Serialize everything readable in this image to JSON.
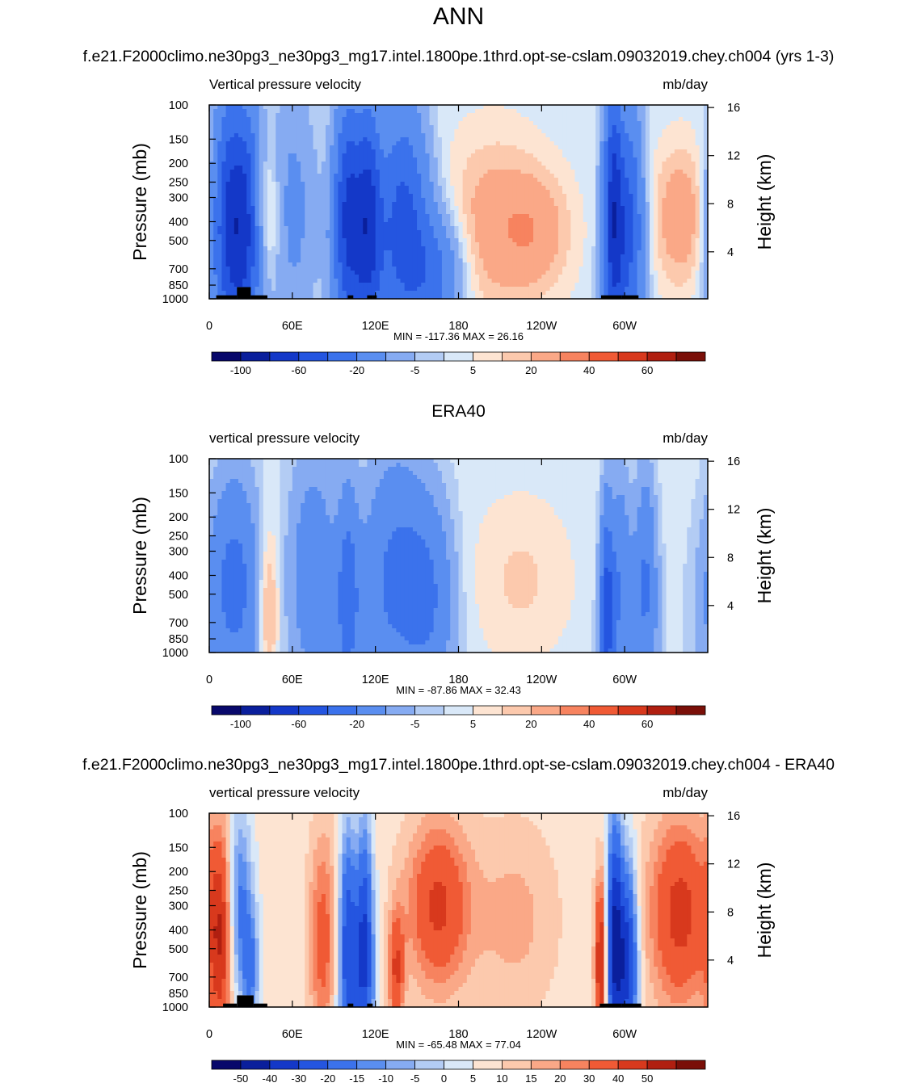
{
  "figure": {
    "title": "ANN"
  },
  "colors": {
    "frame": "#000000",
    "land": "#000000"
  },
  "chart_data": [
    {
      "type": "heatmap",
      "title": "f.e21.F2000climo.ne30pg3_ne30pg3_mg17.intel.1800pe.1thrd.opt-se-cslam.09032019.chey.ch004 (yrs 1-3)",
      "left_label": "Vertical pressure velocity",
      "right_label": "mb/day",
      "ylabel": "Pressure (mb)",
      "ylabel_right": "Height (km)",
      "xticks": [
        {
          "lon": 0,
          "label": "0"
        },
        {
          "lon": 60,
          "label": "60E"
        },
        {
          "lon": 120,
          "label": "120E"
        },
        {
          "lon": 180,
          "label": "180"
        },
        {
          "lon": 240,
          "label": "120W"
        },
        {
          "lon": 300,
          "label": "60W"
        }
      ],
      "yticks": [
        100,
        150,
        200,
        250,
        300,
        400,
        500,
        700,
        850,
        1000
      ],
      "yticks_right": [
        16,
        12,
        8,
        4
      ],
      "xlim": [
        0,
        360
      ],
      "ylim": [
        1000,
        100
      ],
      "minmax_text": "MIN = -117.36  MAX =  26.16",
      "colorbar": {
        "labels": [
          "-100",
          "-60",
          "-20",
          "-5",
          "5",
          "20",
          "40",
          "60"
        ],
        "label_after": [
          1,
          3,
          5,
          7,
          9,
          11,
          13,
          15
        ]
      },
      "levels": [
        -120,
        -100,
        -80,
        -60,
        -40,
        -20,
        -10,
        -5,
        0,
        5,
        10,
        20,
        30,
        40,
        50,
        60,
        70
      ],
      "colors": [
        "#08086b",
        "#0a1f9c",
        "#1438c8",
        "#2455e0",
        "#3b72ec",
        "#5a8ef0",
        "#86abf2",
        "#b3ccf4",
        "#d9e8f8",
        "#fde4d2",
        "#fcc9ad",
        "#faa887",
        "#f7835f",
        "#f05a35",
        "#d8391d",
        "#b01f10",
        "#7a0f08"
      ],
      "field": {
        "base": -3,
        "blobs": [
          {
            "lon": 14,
            "p": 400,
            "w": 8,
            "h": 1.1,
            "a": -75,
            "pc": 1000,
            "shape": 0.2
          },
          {
            "lon": 28,
            "p": 400,
            "w": 7,
            "h": 1.0,
            "a": -65,
            "pc": 1000,
            "shape": 0.2
          },
          {
            "lon": 40,
            "p": 380,
            "w": 8,
            "h": 0.55,
            "a": 22,
            "pc": 1000,
            "shape": 0
          },
          {
            "lon": 60,
            "p": 350,
            "w": 12,
            "h": 1.0,
            "a": -22,
            "pc": 1000,
            "shape": 0
          },
          {
            "lon": 100,
            "p": 380,
            "w": 7,
            "h": 1.0,
            "a": -80,
            "pc": 1000,
            "shape": 0.2
          },
          {
            "lon": 115,
            "p": 380,
            "w": 6,
            "h": 1.0,
            "a": -70,
            "pc": 1000,
            "shape": 0.2
          },
          {
            "lon": 140,
            "p": 420,
            "w": 12,
            "h": 1.0,
            "a": -65,
            "pc": 1000,
            "shape": 0.3
          },
          {
            "lon": 165,
            "p": 750,
            "w": 14,
            "h": 0.5,
            "a": -35,
            "pc": 1000,
            "shape": 0
          },
          {
            "lon": 205,
            "p": 420,
            "w": 26,
            "h": 0.75,
            "a": 18,
            "pc": 1000,
            "shape": 0
          },
          {
            "lon": 238,
            "p": 450,
            "w": 18,
            "h": 0.5,
            "a": 14,
            "pc": 1000,
            "shape": 0
          },
          {
            "lon": 292,
            "p": 380,
            "w": 5,
            "h": 1.1,
            "a": -90,
            "pc": 1000,
            "shape": 0.2
          },
          {
            "lon": 305,
            "p": 420,
            "w": 6,
            "h": 1.0,
            "a": -55,
            "pc": 1000,
            "shape": 0.2
          },
          {
            "lon": 340,
            "p": 380,
            "w": 14,
            "h": 0.6,
            "a": 20,
            "pc": 1000,
            "shape": 0
          }
        ]
      },
      "land": [
        [
          5,
          20,
          960
        ],
        [
          20,
          30,
          870
        ],
        [
          30,
          42,
          960
        ],
        [
          100,
          104,
          960
        ],
        [
          114,
          118,
          960
        ],
        [
          118,
          121,
          960
        ],
        [
          283,
          298,
          960
        ],
        [
          298,
          310,
          960
        ]
      ]
    },
    {
      "type": "heatmap",
      "title": "ERA40",
      "left_label": "vertical pressure velocity",
      "right_label": "mb/day",
      "ylabel": "Pressure (mb)",
      "ylabel_right": "Height (km)",
      "xticks": [
        {
          "lon": 0,
          "label": "0"
        },
        {
          "lon": 60,
          "label": "60E"
        },
        {
          "lon": 120,
          "label": "120E"
        },
        {
          "lon": 180,
          "label": "180"
        },
        {
          "lon": 240,
          "label": "120W"
        },
        {
          "lon": 300,
          "label": "60W"
        }
      ],
      "yticks": [
        100,
        150,
        200,
        250,
        300,
        400,
        500,
        700,
        850,
        1000
      ],
      "yticks_right": [
        16,
        12,
        8,
        4
      ],
      "xlim": [
        0,
        360
      ],
      "ylim": [
        1000,
        100
      ],
      "minmax_text": "MIN = -87.86  MAX =  32.43",
      "colorbar": {
        "labels": [
          "-100",
          "-60",
          "-20",
          "-5",
          "5",
          "20",
          "40",
          "60"
        ],
        "label_after": [
          1,
          3,
          5,
          7,
          9,
          11,
          13,
          15
        ]
      },
      "levels": [
        -120,
        -100,
        -80,
        -60,
        -40,
        -20,
        -10,
        -5,
        0,
        5,
        10,
        20,
        30,
        40,
        50,
        60,
        70
      ],
      "colors": [
        "#08086b",
        "#0a1f9c",
        "#1438c8",
        "#2455e0",
        "#3b72ec",
        "#5a8ef0",
        "#86abf2",
        "#b3ccf4",
        "#d9e8f8",
        "#fde4d2",
        "#fcc9ad",
        "#faa887",
        "#f7835f",
        "#f05a35",
        "#d8391d",
        "#b01f10",
        "#7a0f08"
      ],
      "field": {
        "base": -3,
        "blobs": [
          {
            "lon": 18,
            "p": 450,
            "w": 12,
            "h": 0.9,
            "a": -45,
            "pc": 1000,
            "shape": 0.3
          },
          {
            "lon": 42,
            "p": 600,
            "w": 6,
            "h": 0.7,
            "a": 24,
            "pc": 1000,
            "shape": 0
          },
          {
            "lon": 75,
            "p": 400,
            "w": 12,
            "h": 1.0,
            "a": -30,
            "pc": 1000,
            "shape": 0
          },
          {
            "lon": 100,
            "p": 500,
            "w": 5,
            "h": 0.9,
            "a": -40,
            "pc": 1000,
            "shape": 0.3
          },
          {
            "lon": 135,
            "p": 420,
            "w": 16,
            "h": 1.0,
            "a": -42,
            "pc": 1000,
            "shape": 0.3
          },
          {
            "lon": 160,
            "p": 500,
            "w": 12,
            "h": 0.8,
            "a": -25,
            "pc": 1000,
            "shape": 0
          },
          {
            "lon": 225,
            "p": 420,
            "w": 26,
            "h": 0.7,
            "a": 9,
            "pc": 1000,
            "shape": 0
          },
          {
            "lon": 287,
            "p": 600,
            "w": 3,
            "h": 0.9,
            "a": -60,
            "pc": 1000,
            "shape": 0.4
          },
          {
            "lon": 297,
            "p": 450,
            "w": 5,
            "h": 0.9,
            "a": -35,
            "pc": 1000,
            "shape": 0.3
          },
          {
            "lon": 315,
            "p": 450,
            "w": 5,
            "h": 0.9,
            "a": -40,
            "pc": 1000,
            "shape": 0.3
          }
        ]
      },
      "land": []
    },
    {
      "type": "heatmap",
      "title": "f.e21.F2000climo.ne30pg3_ne30pg3_mg17.intel.1800pe.1thrd.opt-se-cslam.09032019.chey.ch004 - ERA40",
      "left_label": "vertical pressure velocity",
      "right_label": "mb/day",
      "ylabel": "Pressure (mb)",
      "ylabel_right": "Height (km)",
      "xticks": [
        {
          "lon": 0,
          "label": "0"
        },
        {
          "lon": 60,
          "label": "60E"
        },
        {
          "lon": 120,
          "label": "120E"
        },
        {
          "lon": 180,
          "label": "180"
        },
        {
          "lon": 240,
          "label": "120W"
        },
        {
          "lon": 300,
          "label": "60W"
        }
      ],
      "yticks": [
        100,
        150,
        200,
        250,
        300,
        400,
        500,
        700,
        850,
        1000
      ],
      "yticks_right": [
        16,
        12,
        8,
        4
      ],
      "xlim": [
        0,
        360
      ],
      "ylim": [
        1000,
        100
      ],
      "minmax_text": "MIN = -65.48  MAX =  77.04",
      "colorbar": {
        "labels": [
          "-50",
          "-40",
          "-30",
          "-20",
          "-15",
          "-10",
          "-5",
          "0",
          "5",
          "10",
          "15",
          "20",
          "30",
          "40",
          "50"
        ],
        "label_after": [
          1,
          2,
          3,
          4,
          5,
          6,
          7,
          8,
          9,
          10,
          11,
          12,
          13,
          14,
          15
        ]
      },
      "levels": [
        -60,
        -50,
        -40,
        -30,
        -20,
        -15,
        -10,
        -5,
        0,
        5,
        10,
        15,
        20,
        30,
        40,
        50,
        60
      ],
      "colors": [
        "#08086b",
        "#0a1f9c",
        "#1438c8",
        "#2455e0",
        "#3b72ec",
        "#5a8ef0",
        "#86abf2",
        "#b3ccf4",
        "#d9e8f8",
        "#fde4d2",
        "#fcc9ad",
        "#faa887",
        "#f7835f",
        "#f05a35",
        "#d8391d",
        "#b01f10",
        "#7a0f08"
      ],
      "field": {
        "base": 2,
        "blobs": [
          {
            "lon": 8,
            "p": 450,
            "w": 6,
            "h": 0.9,
            "a": 35,
            "pc": 1000,
            "shape": 0
          },
          {
            "lon": 22,
            "p": 300,
            "w": 6,
            "h": 0.8,
            "a": -25,
            "pc": 1000,
            "shape": 0.2
          },
          {
            "lon": 30,
            "p": 650,
            "w": 4,
            "h": 0.5,
            "a": -20,
            "pc": 1000,
            "shape": 0
          },
          {
            "lon": 82,
            "p": 450,
            "w": 7,
            "h": 0.9,
            "a": 22,
            "pc": 1000,
            "shape": 0
          },
          {
            "lon": 100,
            "p": 500,
            "w": 4,
            "h": 1.0,
            "a": -40,
            "pc": 1000,
            "shape": 0.3
          },
          {
            "lon": 112,
            "p": 500,
            "w": 4,
            "h": 1.0,
            "a": -45,
            "pc": 1000,
            "shape": 0.3
          },
          {
            "lon": 135,
            "p": 650,
            "w": 4,
            "h": 0.5,
            "a": 28,
            "pc": 1000,
            "shape": 0
          },
          {
            "lon": 165,
            "p": 300,
            "w": 16,
            "h": 0.7,
            "a": 30,
            "pc": 1000,
            "shape": 0
          },
          {
            "lon": 220,
            "p": 350,
            "w": 22,
            "h": 0.8,
            "a": 10,
            "pc": 1000,
            "shape": 0
          },
          {
            "lon": 283,
            "p": 600,
            "w": 3,
            "h": 0.7,
            "a": 45,
            "pc": 1000,
            "shape": 0
          },
          {
            "lon": 293,
            "p": 450,
            "w": 4,
            "h": 1.0,
            "a": -55,
            "pc": 1000,
            "shape": 0.3
          },
          {
            "lon": 303,
            "p": 550,
            "w": 4,
            "h": 0.8,
            "a": -40,
            "pc": 1000,
            "shape": 0.3
          },
          {
            "lon": 340,
            "p": 330,
            "w": 16,
            "h": 0.8,
            "a": 32,
            "pc": 1000,
            "shape": 0
          }
        ]
      },
      "land": [
        [
          10,
          20,
          960
        ],
        [
          20,
          32,
          870
        ],
        [
          32,
          42,
          960
        ],
        [
          100,
          104,
          960
        ],
        [
          114,
          118,
          960
        ],
        [
          282,
          298,
          960
        ],
        [
          298,
          312,
          960
        ]
      ]
    }
  ]
}
